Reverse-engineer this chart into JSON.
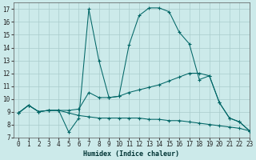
{
  "xlabel": "Humidex (Indice chaleur)",
  "background_color": "#cceaea",
  "grid_color": "#aacccc",
  "line_color": "#006666",
  "xlim": [
    -0.5,
    23
  ],
  "ylim": [
    7,
    17.5
  ],
  "xticks": [
    0,
    1,
    2,
    3,
    4,
    5,
    6,
    7,
    8,
    9,
    10,
    11,
    12,
    13,
    14,
    15,
    16,
    17,
    18,
    19,
    20,
    21,
    22,
    23
  ],
  "yticks": [
    7,
    8,
    9,
    10,
    11,
    12,
    13,
    14,
    15,
    16,
    17
  ],
  "series": [
    {
      "x": [
        0,
        1,
        2,
        3,
        4,
        5,
        6,
        7,
        8,
        9,
        10,
        11,
        12,
        13,
        14,
        15,
        16,
        17,
        18,
        19,
        20,
        21,
        22,
        23
      ],
      "y": [
        8.9,
        9.5,
        9.0,
        9.1,
        9.1,
        7.4,
        8.5,
        17.0,
        13.0,
        10.1,
        10.2,
        14.2,
        16.5,
        17.1,
        17.1,
        16.8,
        15.2,
        14.3,
        11.5,
        11.8,
        9.7,
        8.5,
        8.2,
        7.5
      ]
    },
    {
      "x": [
        0,
        1,
        2,
        3,
        4,
        5,
        6,
        7,
        8,
        9,
        10,
        11,
        12,
        13,
        14,
        15,
        16,
        17,
        18,
        19,
        20,
        21,
        22,
        23
      ],
      "y": [
        8.9,
        9.5,
        9.0,
        9.1,
        9.1,
        9.1,
        9.2,
        10.5,
        10.1,
        10.1,
        10.2,
        10.5,
        10.7,
        10.9,
        11.1,
        11.4,
        11.7,
        12.0,
        12.0,
        11.8,
        9.7,
        8.5,
        8.2,
        7.5
      ]
    },
    {
      "x": [
        0,
        1,
        2,
        3,
        4,
        5,
        6,
        7,
        8,
        9,
        10,
        11,
        12,
        13,
        14,
        15,
        16,
        17,
        18,
        19,
        20,
        21,
        22,
        23
      ],
      "y": [
        8.9,
        9.5,
        9.0,
        9.1,
        9.1,
        8.9,
        8.7,
        8.6,
        8.5,
        8.5,
        8.5,
        8.5,
        8.5,
        8.4,
        8.4,
        8.3,
        8.3,
        8.2,
        8.1,
        8.0,
        7.9,
        7.8,
        7.7,
        7.5
      ]
    }
  ]
}
